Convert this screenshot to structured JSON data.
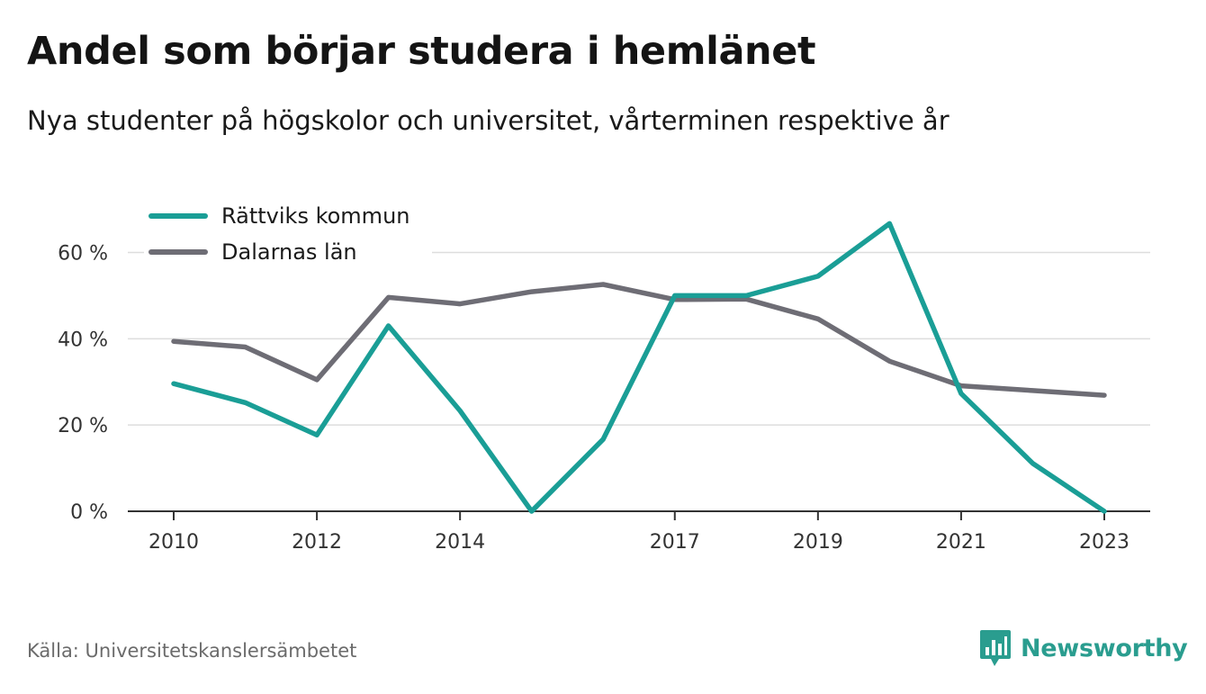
{
  "title": "Andel som börjar studera i hemlänet",
  "subtitle": "Nya studenter på högskolor och universitet, vårterminen respektive år",
  "source": "Källa: Universitetskanslersämbetet",
  "brand": {
    "name": "Newsworthy",
    "logo_icon": "bar-chart-speech-bubble-icon",
    "color": "#2a9d8f"
  },
  "chart_data": {
    "type": "line",
    "x": [
      2010,
      2011,
      2012,
      2013,
      2014,
      2015,
      2016,
      2017,
      2018,
      2019,
      2020,
      2021,
      2022,
      2023
    ],
    "x_tick_labels": [
      "2010",
      "2012",
      "2014",
      "2017",
      "2019",
      "2021",
      "2023"
    ],
    "y_tick_labels": [
      "0 %",
      "20 %",
      "40 %",
      "60 %"
    ],
    "y_ticks": [
      0,
      20,
      40,
      60
    ],
    "ylim": [
      0,
      67
    ],
    "grid": true,
    "legend_position": "top-left",
    "series": [
      {
        "name": "Rättviks kommun",
        "color": "#1a9e96",
        "values": [
          29.6,
          25.2,
          17.7,
          43.0,
          23.3,
          0.0,
          16.7,
          50.0,
          50.0,
          54.5,
          66.7,
          27.3,
          11.1,
          0.0
        ]
      },
      {
        "name": "Dalarnas län",
        "color": "#6e6d75",
        "values": [
          39.4,
          38.1,
          30.5,
          49.6,
          48.1,
          50.9,
          52.6,
          49.1,
          49.2,
          44.6,
          34.8,
          29.1,
          28.0,
          26.9
        ]
      }
    ]
  }
}
